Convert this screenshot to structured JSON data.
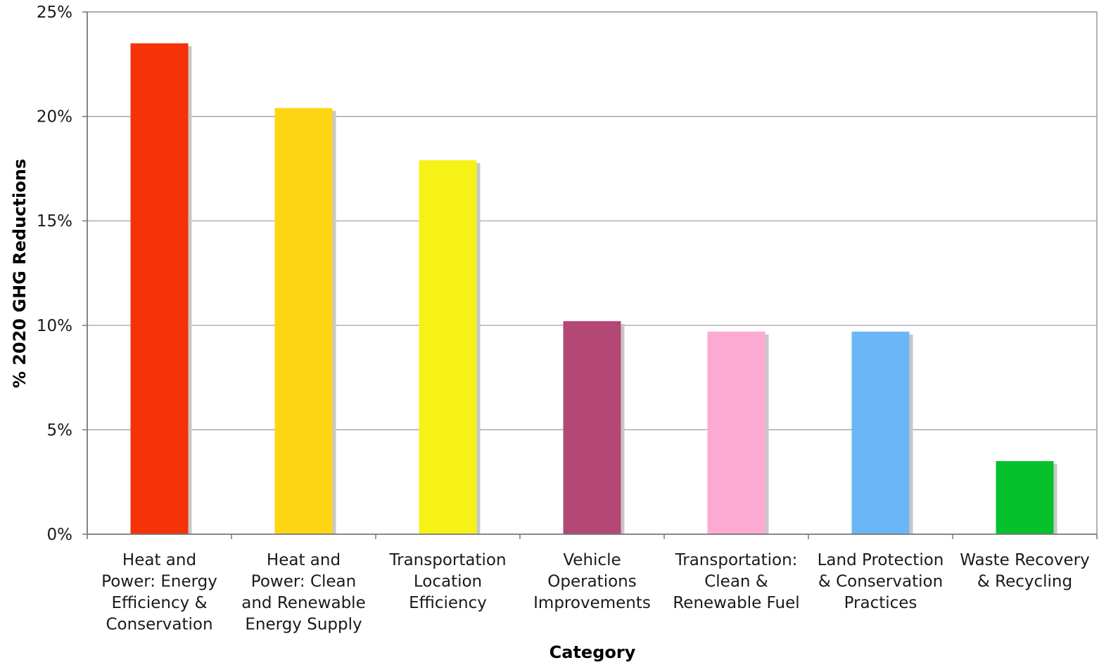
{
  "chart_data": {
    "type": "bar",
    "title": "",
    "xlabel": "Category",
    "ylabel": "% 2020 GHG Reductions",
    "ylim": [
      0,
      25
    ],
    "yticks": [
      0,
      5,
      10,
      15,
      20,
      25
    ],
    "ytick_labels": [
      "0%",
      "5%",
      "10%",
      "15%",
      "20%",
      "25%"
    ],
    "grid": true,
    "legend": "none",
    "categories": [
      [
        "Heat and",
        "Power: Energy",
        "Efficiency &",
        "Conservation"
      ],
      [
        "Heat and",
        "Power: Clean",
        "and Renewable",
        "Energy Supply"
      ],
      [
        "Transportation",
        "Location",
        "Efficiency"
      ],
      [
        "Vehicle",
        "Operations",
        "Improvements"
      ],
      [
        "Transportation:",
        "Clean &",
        "Renewable Fuel"
      ],
      [
        "Land Protection",
        "& Conservation",
        "Practices"
      ],
      [
        "Waste Recovery",
        "& Recycling"
      ]
    ],
    "values": [
      23.5,
      20.4,
      17.9,
      10.2,
      9.7,
      9.7,
      3.5
    ],
    "colors": [
      "#f63208",
      "#fed512",
      "#f6f218",
      "#b44874",
      "#fcaad2",
      "#6bb6f6",
      "#05c12c"
    ]
  }
}
